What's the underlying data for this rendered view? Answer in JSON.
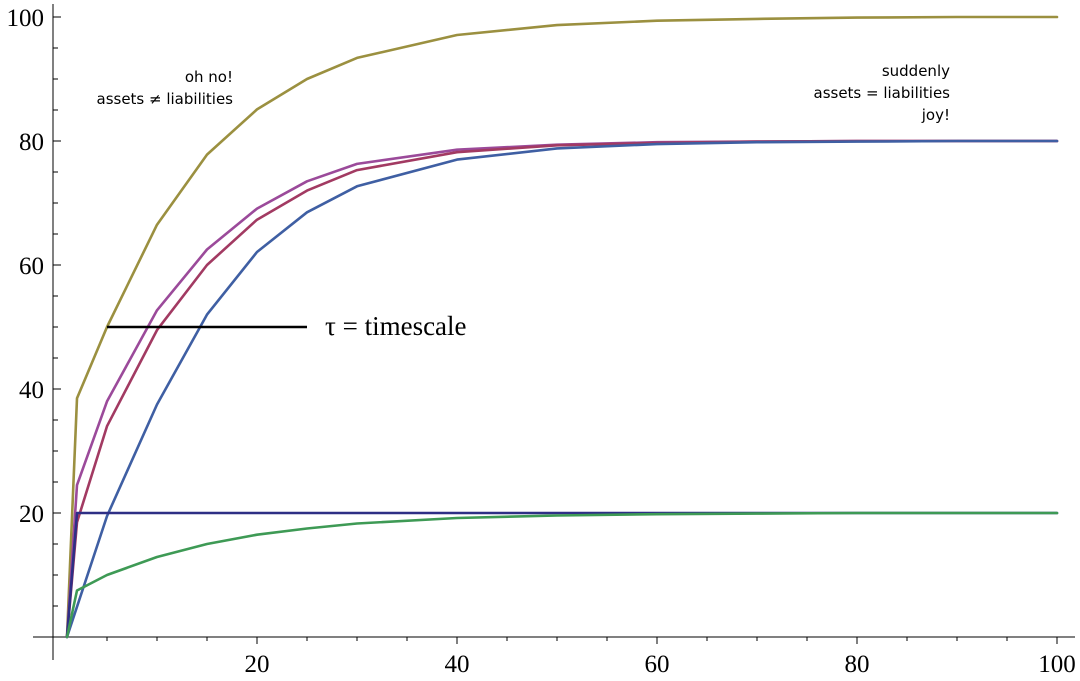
{
  "chart_data": {
    "type": "line",
    "xlim": [
      0,
      100
    ],
    "ylim": [
      0,
      100
    ],
    "x_ticks": [
      20,
      40,
      60,
      80,
      100
    ],
    "y_ticks": [
      20,
      40,
      60,
      80,
      100
    ],
    "x_tick_labels": [
      "20",
      "40",
      "60",
      "80",
      "100"
    ],
    "y_tick_labels": [
      "20",
      "40",
      "60",
      "80",
      "100"
    ],
    "grid": false,
    "series": [
      {
        "color": "#9b9040",
        "x": [
          1,
          2,
          5,
          10,
          15,
          20,
          25,
          30,
          40,
          50,
          60,
          70,
          80,
          90,
          100
        ],
        "values": [
          0,
          38.5,
          50,
          66.5,
          77.8,
          85.1,
          90,
          93.4,
          97.1,
          98.7,
          99.4,
          99.7,
          99.9,
          100,
          100
        ]
      },
      {
        "color": "#9b4a9a",
        "x": [
          1,
          2,
          5,
          10,
          15,
          20,
          25,
          30,
          40,
          50,
          60,
          70,
          80,
          90,
          100
        ],
        "values": [
          0,
          24.5,
          38,
          52.7,
          62.5,
          69.1,
          73.5,
          76.3,
          78.6,
          79.4,
          79.8,
          79.9,
          80,
          80,
          80
        ]
      },
      {
        "color": "#a23a62",
        "x": [
          1,
          2,
          5,
          10,
          15,
          20,
          25,
          30,
          40,
          50,
          60,
          70,
          80,
          90,
          100
        ],
        "values": [
          0,
          18.5,
          34,
          49.5,
          60,
          67.3,
          72,
          75.3,
          78.2,
          79.3,
          79.7,
          79.9,
          80,
          80,
          80
        ]
      },
      {
        "color": "#3f5fa3",
        "x": [
          1,
          5,
          10,
          15,
          20,
          25,
          30,
          40,
          50,
          60,
          70,
          80,
          90,
          100
        ],
        "values": [
          0,
          19.5,
          37.5,
          52,
          62.1,
          68.5,
          72.7,
          77,
          78.8,
          79.5,
          79.8,
          79.9,
          80,
          80
        ]
      },
      {
        "color": "#2e2f85",
        "x": [
          1,
          2,
          100
        ],
        "values": [
          0,
          20,
          20
        ]
      },
      {
        "color": "#3e9a55",
        "x": [
          1,
          2,
          5,
          10,
          15,
          20,
          25,
          30,
          40,
          50,
          60,
          70,
          80,
          90,
          100
        ],
        "values": [
          0,
          7.5,
          10,
          12.9,
          15,
          16.5,
          17.5,
          18.3,
          19.2,
          19.6,
          19.8,
          19.9,
          20,
          20,
          20
        ]
      }
    ],
    "marker_line": {
      "x": [
        5,
        25
      ],
      "y": 50,
      "color": "#000000"
    },
    "annotations": [
      {
        "lines": [
          "oh no!",
          "assets ≠ liabilities"
        ],
        "anchor": "end"
      },
      {
        "lines": [
          "suddenly",
          "assets = liabilities",
          "joy!"
        ],
        "anchor": "end"
      },
      {
        "lines": [
          "τ = timescale"
        ],
        "anchor": "start"
      }
    ]
  }
}
